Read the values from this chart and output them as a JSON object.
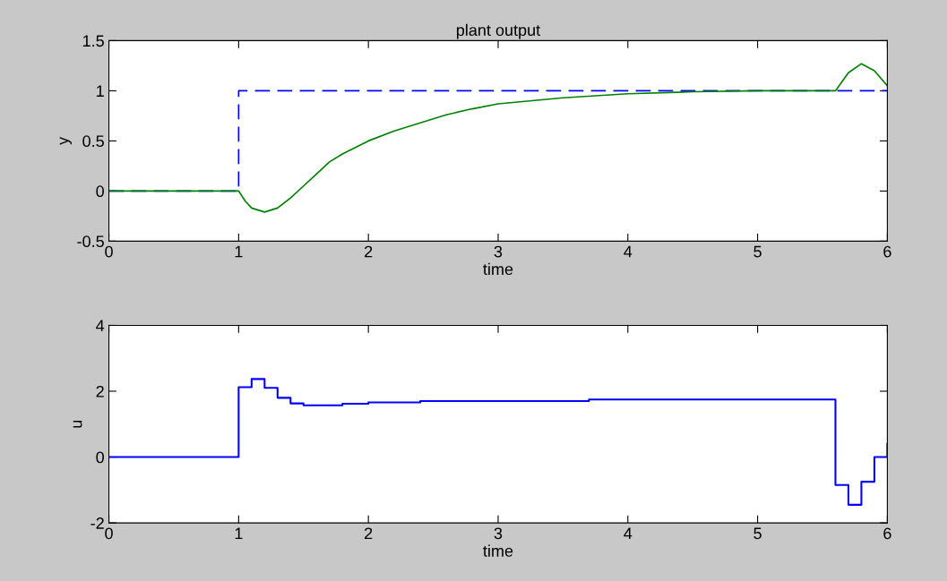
{
  "chart_data": [
    {
      "type": "line",
      "title": "plant output",
      "xlabel": "time",
      "ylabel": "y",
      "xlim": [
        0,
        6
      ],
      "xticks": [
        0,
        1,
        2,
        3,
        4,
        5,
        6
      ],
      "ylim": [
        -0.5,
        1.5
      ],
      "yticks": [
        -0.5,
        0,
        0.5,
        1,
        1.5
      ],
      "grid": false,
      "legend": false,
      "series": [
        {
          "color": "#0000ff",
          "line_style": "dashed",
          "x": [
            0,
            1,
            1,
            6
          ],
          "values": [
            0,
            0,
            1,
            1
          ]
        },
        {
          "color": "#008000",
          "line_style": "solid",
          "x": [
            0,
            1,
            1.05,
            1.1,
            1.2,
            1.3,
            1.4,
            1.5,
            1.6,
            1.7,
            1.8,
            2.0,
            2.2,
            2.4,
            2.6,
            2.8,
            3.0,
            3.5,
            4.0,
            4.5,
            5.0,
            5.6,
            5.7,
            5.8,
            5.9,
            6.0
          ],
          "values": [
            0,
            0,
            -0.1,
            -0.17,
            -0.21,
            -0.17,
            -0.07,
            0.05,
            0.17,
            0.29,
            0.37,
            0.5,
            0.6,
            0.68,
            0.76,
            0.82,
            0.87,
            0.93,
            0.97,
            0.99,
            1.0,
            1.0,
            1.18,
            1.27,
            1.2,
            1.05
          ]
        }
      ]
    },
    {
      "type": "step",
      "xlabel": "time",
      "ylabel": "u",
      "xlim": [
        0,
        6
      ],
      "xticks": [
        0,
        1,
        2,
        3,
        4,
        5,
        6
      ],
      "ylim": [
        -2,
        4
      ],
      "yticks": [
        -2,
        0,
        2,
        4
      ],
      "grid": false,
      "legend": false,
      "series": [
        {
          "color": "#0000ff",
          "x": [
            0,
            1,
            1.1,
            1.2,
            1.3,
            1.4,
            1.5,
            1.8,
            2.0,
            2.4,
            3.7,
            5.6,
            5.7,
            5.8,
            5.9,
            6.0
          ],
          "values": [
            0,
            2.12,
            2.37,
            2.1,
            1.8,
            1.63,
            1.57,
            1.62,
            1.66,
            1.7,
            1.75,
            -0.85,
            -1.45,
            -0.75,
            0,
            0.4
          ]
        }
      ]
    }
  ]
}
